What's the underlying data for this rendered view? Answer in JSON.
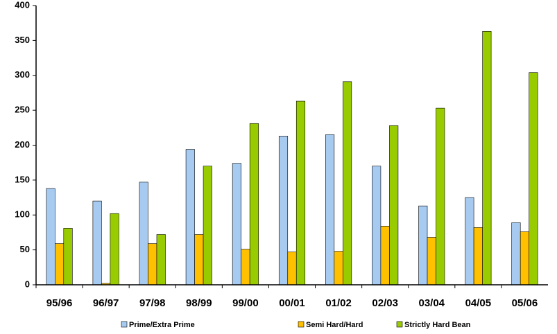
{
  "chart_data": {
    "type": "bar",
    "categories": [
      "95/96",
      "96/97",
      "97/98",
      "98/99",
      "99/00",
      "00/01",
      "01/02",
      "02/03",
      "03/04",
      "04/05",
      "05/06"
    ],
    "series": [
      {
        "name": "Prime/Extra Prime",
        "color": "#a6caf0",
        "values": [
          138,
          120,
          147,
          194,
          174,
          213,
          215,
          170,
          113,
          125,
          89
        ]
      },
      {
        "name": "Semi Hard/Hard",
        "color": "#ffc000",
        "values": [
          59,
          2,
          59,
          72,
          51,
          47,
          48,
          84,
          68,
          82,
          76
        ]
      },
      {
        "name": "Strictly Hard Bean",
        "color": "#99cc00",
        "values": [
          81,
          102,
          72,
          170,
          231,
          263,
          291,
          228,
          253,
          363,
          304
        ]
      }
    ],
    "ylim": [
      0,
      400
    ],
    "yticks": [
      0,
      50,
      100,
      150,
      200,
      250,
      300,
      350,
      400
    ]
  }
}
